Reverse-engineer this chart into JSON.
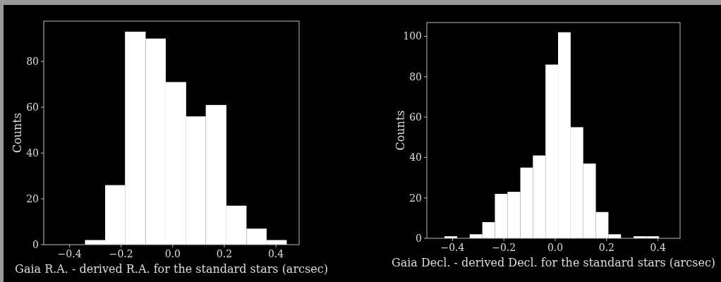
{
  "chart_data": [
    {
      "type": "histogram",
      "xlabel": "Gaia R.A. - derived R.A. for the standard stars (arcsec)",
      "ylabel": "Counts",
      "color": "#ffffff",
      "bins": [
        -0.34,
        -0.262,
        -0.185,
        -0.105,
        -0.027,
        0.052,
        0.128,
        0.208,
        0.286,
        0.364,
        0.442
      ],
      "values": [
        2,
        26,
        93,
        90,
        71,
        56,
        61,
        17,
        7,
        2
      ],
      "xlim": [
        -0.5,
        0.49
      ],
      "ylim": [
        0,
        97.6
      ],
      "xticks": [
        {
          "value": -0.4,
          "label": "−0.4"
        },
        {
          "value": -0.2,
          "label": "−0.2"
        },
        {
          "value": 0,
          "label": "0.0"
        },
        {
          "value": 0.2,
          "label": "0.2"
        },
        {
          "value": 0.4,
          "label": "0.4"
        }
      ],
      "yticks": [
        0,
        20,
        40,
        60,
        80
      ]
    },
    {
      "type": "histogram",
      "xlabel": "Gaia Decl. - derived Decl. for the standard stars (arcsec)",
      "ylabel": "Counts",
      "color": "#ffffff",
      "bins": [
        -0.431,
        -0.382,
        -0.333,
        -0.284,
        -0.235,
        -0.186,
        -0.136,
        -0.087,
        -0.038,
        0.011,
        0.06,
        0.109,
        0.158,
        0.207,
        0.256,
        0.305,
        0.355,
        0.404
      ],
      "values": [
        1,
        0,
        2,
        8,
        22,
        23,
        35,
        41,
        86,
        102,
        55,
        37,
        13,
        2,
        0,
        1,
        1
      ],
      "xlim": [
        -0.5,
        0.486
      ],
      "ylim": [
        0,
        106.8
      ],
      "xticks": [
        {
          "value": -0.4,
          "label": "−0.4"
        },
        {
          "value": -0.2,
          "label": "−0.2"
        },
        {
          "value": 0,
          "label": "0.0"
        },
        {
          "value": 0.2,
          "label": "0.2"
        },
        {
          "value": 0.4,
          "label": "0.4"
        }
      ],
      "yticks": [
        0,
        20,
        40,
        60,
        80,
        100
      ]
    }
  ]
}
